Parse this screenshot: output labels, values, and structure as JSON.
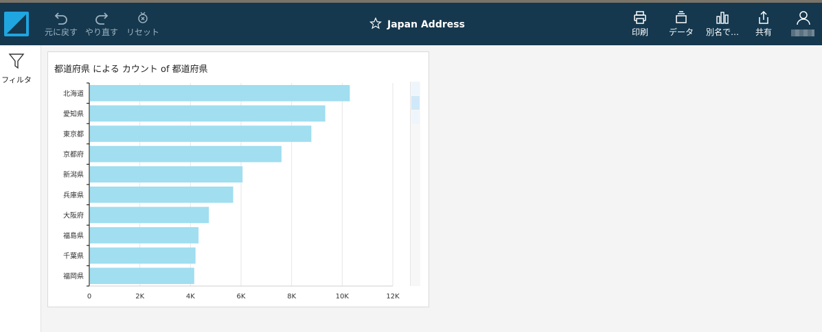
{
  "toolbar": {
    "undo_label": "元に戻す",
    "redo_label": "やり直す",
    "reset_label": "リセット",
    "title": "Japan Address",
    "print_label": "印刷",
    "data_label": "データ",
    "save_as_label": "別名で…",
    "share_label": "共有"
  },
  "sidebar": {
    "filter_label": "フィルタ"
  },
  "visual": {
    "title": "都道府県 による カウント of 都道府県"
  },
  "colors": {
    "topbar": "#15384e",
    "bar": "#a0def0",
    "logo": "#1fa6e0"
  },
  "chart_data": {
    "type": "bar",
    "orientation": "horizontal",
    "title": "都道府県 による カウント of 都道府県",
    "categories": [
      "北海道",
      "愛知県",
      "東京都",
      "京都府",
      "新潟県",
      "兵庫県",
      "大阪府",
      "福島県",
      "千葉県",
      "福岡県"
    ],
    "values": [
      10300,
      9330,
      8780,
      7600,
      6060,
      5690,
      4730,
      4320,
      4200,
      4150
    ],
    "xticks": [
      "0",
      "2K",
      "4K",
      "6K",
      "8K",
      "10K",
      "12K"
    ],
    "xtick_values": [
      0,
      2000,
      4000,
      6000,
      8000,
      10000,
      12000
    ],
    "xlim": [
      0,
      12000
    ],
    "grid": true,
    "xlabel": "",
    "ylabel": ""
  }
}
